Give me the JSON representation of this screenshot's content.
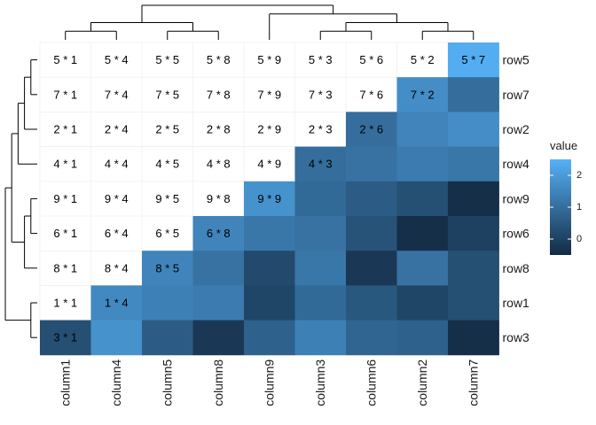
{
  "chart_data": {
    "type": "heatmap",
    "title": "",
    "rows": [
      "row5",
      "row7",
      "row2",
      "row4",
      "row9",
      "row6",
      "row8",
      "row1",
      "row3"
    ],
    "columns": [
      "column1",
      "column4",
      "column5",
      "column8",
      "column9",
      "column3",
      "column6",
      "column2",
      "column7"
    ],
    "values": [
      [
        null,
        null,
        null,
        null,
        null,
        null,
        null,
        null,
        2.4
      ],
      [
        null,
        null,
        null,
        null,
        null,
        null,
        null,
        1.7,
        1.0
      ],
      [
        null,
        null,
        null,
        null,
        null,
        null,
        1.0,
        1.5,
        1.7
      ],
      [
        null,
        null,
        null,
        null,
        null,
        1.0,
        1.1,
        1.3,
        1.2
      ],
      [
        null,
        null,
        null,
        null,
        1.8,
        0.9,
        0.6,
        0.3,
        -0.4
      ],
      [
        null,
        null,
        null,
        1.5,
        1.2,
        1.1,
        0.4,
        -0.4,
        0.0
      ],
      [
        null,
        null,
        1.5,
        1.1,
        0.2,
        1.2,
        -0.2,
        1.1,
        0.3
      ],
      [
        null,
        1.6,
        1.4,
        1.3,
        0.1,
        0.9,
        0.5,
        0.1,
        0.3
      ],
      [
        0.3,
        1.8,
        0.6,
        -0.2,
        0.7,
        1.4,
        0.8,
        0.7,
        -0.4
      ]
    ],
    "cell_labels": [
      [
        "5 * 1",
        "5 * 4",
        "5 * 5",
        "5 * 8",
        "5 * 9",
        "5 * 3",
        "5 * 6",
        "5 * 2",
        "5 * 7"
      ],
      [
        "7 * 1",
        "7 * 4",
        "7 * 5",
        "7 * 8",
        "7 * 9",
        "7 * 3",
        "7 * 6",
        "7 * 2",
        ""
      ],
      [
        "2 * 1",
        "2 * 4",
        "2 * 5",
        "2 * 8",
        "2 * 9",
        "2 * 3",
        "2 * 6",
        "",
        ""
      ],
      [
        "4 * 1",
        "4 * 4",
        "4 * 5",
        "4 * 8",
        "4 * 9",
        "4 * 3",
        "",
        "",
        ""
      ],
      [
        "9 * 1",
        "9 * 4",
        "9 * 5",
        "9 * 8",
        "9 * 9",
        "",
        "",
        "",
        ""
      ],
      [
        "6 * 1",
        "6 * 4",
        "6 * 5",
        "6 * 8",
        "",
        "",
        "",
        "",
        ""
      ],
      [
        "8 * 1",
        "8 * 4",
        "8 * 5",
        "",
        "",
        "",
        "",
        "",
        ""
      ],
      [
        "1 * 1",
        "1 * 4",
        "",
        "",
        "",
        "",
        "",
        "",
        ""
      ],
      [
        "3 * 1",
        "",
        "",
        "",
        "",
        "",
        "",
        "",
        ""
      ]
    ],
    "legend": {
      "title": "value",
      "ticks": [
        2,
        1,
        0
      ],
      "min": -0.5,
      "max": 2.5
    },
    "color_scale": {
      "low": "#132B43",
      "high": "#56B1F7",
      "missing": "#FFFFFF"
    },
    "grid_color": "#EBEBEB",
    "row_dendrogram": "(((((row5,row7),row2),row4),((row9,row6),row8)),(row1,row3))",
    "column_dendrogram": "(((column1,column4),(column5,column8)),(column9,((column3,column6),(column2,column7))))"
  }
}
